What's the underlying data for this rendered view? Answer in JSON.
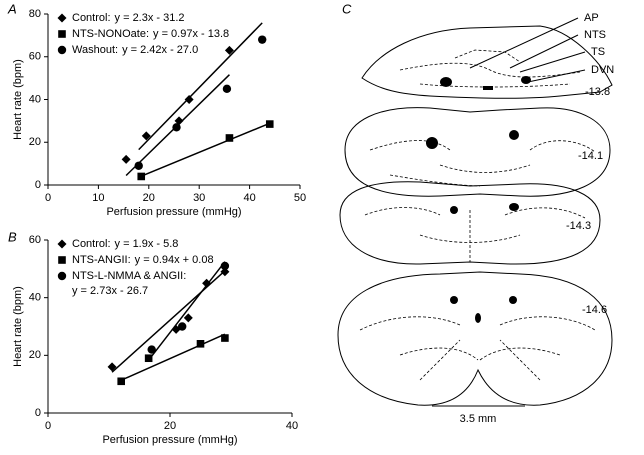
{
  "chart_data": [
    {
      "type": "scatter",
      "panel": "A",
      "x_label": "Perfusion pressure (mmHg)",
      "y_label": "Heart rate (bpm)",
      "xlim": [
        0,
        50
      ],
      "xticks": [
        0,
        10,
        20,
        30,
        40,
        50
      ],
      "ylim": [
        0,
        80
      ],
      "yticks": [
        0,
        20,
        40,
        60,
        80
      ],
      "series": [
        {
          "name": "Control:",
          "equation": "y = 2.3x - 31.2",
          "fit": [
            2.3,
            -31.2
          ],
          "marker": "diamond",
          "color": "#000000",
          "x": [
            15.5,
            19.5,
            26,
            28,
            36
          ],
          "values": [
            12,
            23,
            30,
            40,
            63
          ]
        },
        {
          "name": "NTS-NONOate:",
          "equation": "y = 0.97x - 13.8",
          "fit": [
            0.97,
            -13.8
          ],
          "marker": "square",
          "color": "#000000",
          "x": [
            18.5,
            36,
            44
          ],
          "values": [
            4,
            22,
            28.5
          ]
        },
        {
          "name": "Washout:",
          "equation": "y = 2.42x - 27.0",
          "fit": [
            2.42,
            -27.0
          ],
          "marker": "circle",
          "color": "#000000",
          "x": [
            18,
            25.5,
            35.5,
            42.5
          ],
          "values": [
            9,
            27,
            45,
            68
          ]
        }
      ]
    },
    {
      "type": "scatter",
      "panel": "B",
      "x_label": "Perfusion pressure (mmHg)",
      "y_label": "Heart rate (bpm)",
      "xlim": [
        0,
        40
      ],
      "xticks": [
        0,
        20,
        40
      ],
      "ylim": [
        0,
        60
      ],
      "yticks": [
        0,
        20,
        40,
        60
      ],
      "series": [
        {
          "name": "Control:",
          "equation": "y = 1.9x - 5.8",
          "fit": [
            1.9,
            -5.8
          ],
          "marker": "diamond",
          "color": "#000000",
          "x": [
            10.5,
            21,
            23,
            26,
            29
          ],
          "values": [
            16,
            29,
            33,
            45,
            49
          ]
        },
        {
          "name": "NTS-ANGII:",
          "equation": "y = 0.94x + 0.08",
          "fit": [
            0.94,
            0.08
          ],
          "marker": "square",
          "color": "#000000",
          "x": [
            12,
            16.5,
            25,
            29
          ],
          "values": [
            11,
            19,
            24,
            26
          ]
        },
        {
          "name": "NTS-L-NMMA & ANGII:",
          "equation": "y = 2.73x - 26.7",
          "fit": [
            2.73,
            -26.7
          ],
          "marker": "circle",
          "color": "#000000",
          "x": [
            17,
            22,
            29
          ],
          "values": [
            22,
            30,
            51
          ]
        }
      ]
    }
  ],
  "diagram": {
    "panel": "C",
    "labels": [
      "AP",
      "NTS",
      "TS",
      "DVN"
    ],
    "levels": [
      "-13.8",
      "-14.1",
      "-14.3",
      "-14.6"
    ],
    "scale_bar": "3.5 mm"
  }
}
